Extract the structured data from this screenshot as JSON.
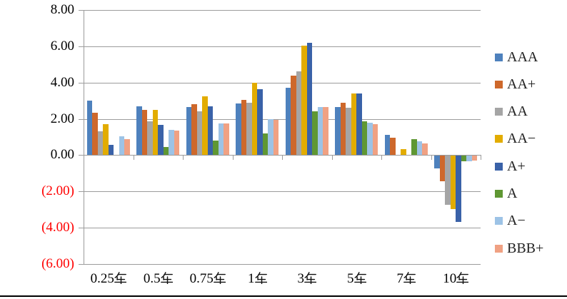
{
  "chart_data": {
    "type": "bar",
    "title": "",
    "xlabel": "",
    "ylabel": "",
    "categories": [
      "0.25年",
      "0.5年",
      "0.75年",
      "1年",
      "3年",
      "5年",
      "7年",
      "10年"
    ],
    "series": [
      {
        "name": "AAA",
        "color": "#4E81BD",
        "values": [
          3.0,
          2.7,
          2.65,
          2.85,
          3.7,
          2.65,
          1.1,
          -0.7
        ]
      },
      {
        "name": "AA+",
        "color": "#CE682B",
        "values": [
          2.35,
          2.5,
          2.8,
          3.05,
          4.4,
          2.9,
          0.95,
          -1.4
        ]
      },
      {
        "name": "AA",
        "color": "#A5A5A5",
        "values": [
          1.3,
          1.85,
          2.4,
          2.9,
          4.6,
          2.6,
          0.0,
          -2.7
        ]
      },
      {
        "name": "AA−",
        "color": "#E2AC00",
        "values": [
          1.7,
          2.5,
          3.25,
          4.0,
          6.05,
          3.4,
          0.35,
          -2.95
        ]
      },
      {
        "name": "A+",
        "color": "#3A62A8",
        "values": [
          0.55,
          1.65,
          2.7,
          3.65,
          6.2,
          3.4,
          0.0,
          -3.65
        ]
      },
      {
        "name": "A",
        "color": "#5F9733",
        "values": [
          0.0,
          0.45,
          0.8,
          1.2,
          2.4,
          1.85,
          0.9,
          -0.3
        ]
      },
      {
        "name": "A−",
        "color": "#9DC3E6",
        "values": [
          1.05,
          1.4,
          1.75,
          2.0,
          2.65,
          1.8,
          0.75,
          -0.3
        ]
      },
      {
        "name": "BBB+",
        "color": "#F0A183",
        "values": [
          0.9,
          1.35,
          1.75,
          1.95,
          2.65,
          1.7,
          0.65,
          -0.25
        ]
      }
    ],
    "y_axis": {
      "min": -6,
      "max": 8,
      "step": 2,
      "tick_values": [
        8,
        6,
        4,
        2,
        0,
        -2,
        -4,
        -6
      ],
      "tick_labels": [
        "8.00",
        "6.00",
        "4.00",
        "2.00",
        "0.00",
        "(2.00)",
        "(4.00)",
        "(6.00)"
      ],
      "positive_label_color": "#000000",
      "negative_label_color": "#FF0000"
    },
    "legend": {
      "position": "right"
    },
    "grid": true,
    "gridline_color": "#9C9C9C",
    "axis_color": "#9C9C9C",
    "background_color": "#FFFFFF",
    "bottom_rule_color": "#000000"
  }
}
